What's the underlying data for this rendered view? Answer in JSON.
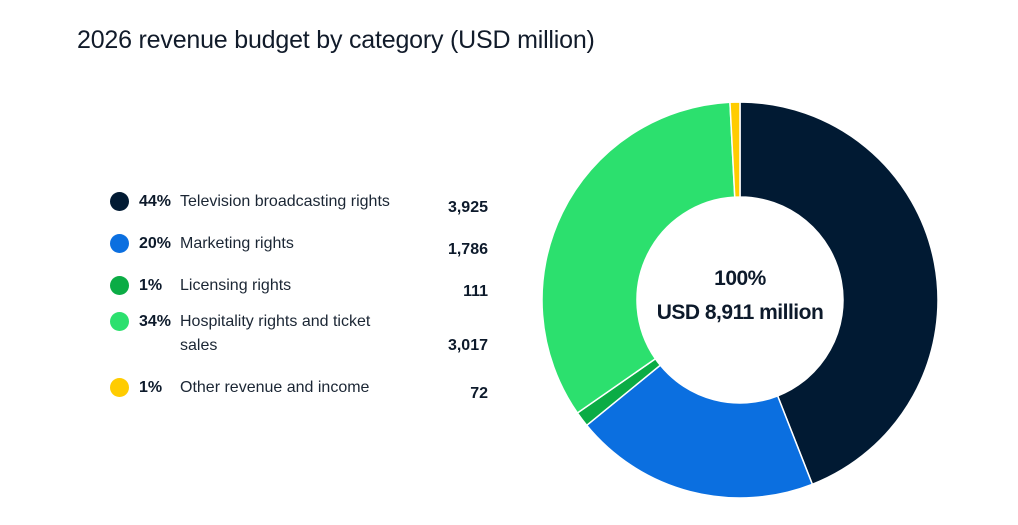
{
  "title": "2026 revenue budget by category (USD million)",
  "legend": [
    {
      "pct": "44%",
      "label": "Television broadcasting rights",
      "value": "3,925",
      "color": "#011a33"
    },
    {
      "pct": "20%",
      "label": "Marketing rights",
      "value": "1,786",
      "color": "#0b6fe0"
    },
    {
      "pct": "1%",
      "label": "Licensing rights",
      "value": "111",
      "color": "#0bac45"
    },
    {
      "pct": "34%",
      "label": "Hospitality rights and ticket sales",
      "value": "3,017",
      "color": "#2ce06e"
    },
    {
      "pct": "1%",
      "label": "Other revenue and income",
      "value": "72",
      "color": "#ffcc00"
    }
  ],
  "center": {
    "line1": "100%",
    "line2": "USD 8,911 million"
  },
  "chart_data": {
    "type": "pie",
    "donut": true,
    "title": "2026 revenue budget by category (USD million)",
    "categories": [
      "Television broadcasting rights",
      "Marketing rights",
      "Licensing rights",
      "Hospitality rights and ticket sales",
      "Other revenue and income"
    ],
    "values": [
      3925,
      1786,
      111,
      3017,
      72
    ],
    "percentages": [
      44,
      20,
      1,
      34,
      1
    ],
    "colors": [
      "#011a33",
      "#0b6fe0",
      "#0bac45",
      "#2ce06e",
      "#ffcc00"
    ],
    "total": 8911,
    "center_label": [
      "100%",
      "USD 8,911 million"
    ],
    "legend_placement": "left"
  }
}
